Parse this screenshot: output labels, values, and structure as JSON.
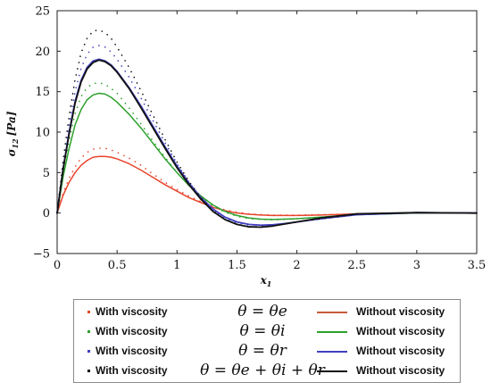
{
  "chart_data": {
    "type": "line",
    "title": "",
    "xlabel": "x",
    "xlabel_sub": "1",
    "ylabel": "σ",
    "ylabel_sub": "12",
    "ylabel_unit": "[Pa]",
    "xlim": [
      0,
      3.5
    ],
    "ylim": [
      -5,
      25
    ],
    "xticks": [
      "0",
      "0.5",
      "1",
      "1.5",
      "2",
      "2.5",
      "3",
      "3.5"
    ],
    "yticks": [
      "−5",
      "0",
      "5",
      "10",
      "15",
      "20",
      "25"
    ],
    "grid": false,
    "legend_position": "below",
    "series": [
      {
        "name": "Without viscosity",
        "theta": "θ = θe",
        "style": "solid",
        "color": "#e8452c",
        "x": [
          0,
          0.05,
          0.1,
          0.15,
          0.2,
          0.25,
          0.3,
          0.35,
          0.4,
          0.45,
          0.5,
          0.6,
          0.7,
          0.8,
          0.9,
          1.0,
          1.1,
          1.2,
          1.3,
          1.4,
          1.5,
          1.6,
          1.7,
          1.8,
          2.0,
          2.2,
          2.5,
          3.0,
          3.5
        ],
        "y": [
          0,
          2.2,
          3.8,
          5.0,
          5.9,
          6.5,
          6.9,
          7.0,
          7.0,
          6.9,
          6.7,
          6.1,
          5.3,
          4.4,
          3.5,
          2.7,
          1.9,
          1.3,
          0.7,
          0.3,
          0.0,
          -0.15,
          -0.25,
          -0.3,
          -0.3,
          -0.25,
          -0.1,
          0,
          0
        ]
      },
      {
        "name": "With viscosity",
        "theta": "θ = θe",
        "style": "dotted",
        "color": "#e8452c",
        "x": [
          0,
          0.05,
          0.1,
          0.15,
          0.2,
          0.25,
          0.3,
          0.35,
          0.4,
          0.45,
          0.5,
          0.6,
          0.7,
          0.8,
          0.9,
          1.0,
          1.1,
          1.2,
          1.3,
          1.4,
          1.5,
          1.6,
          1.8,
          2.0,
          2.5,
          3.0,
          3.5
        ],
        "y": [
          0,
          2.5,
          4.3,
          5.7,
          6.8,
          7.5,
          7.9,
          8.0,
          8.0,
          7.8,
          7.5,
          6.8,
          5.9,
          4.8,
          3.8,
          2.9,
          2.1,
          1.4,
          0.8,
          0.4,
          0.1,
          -0.1,
          -0.25,
          -0.25,
          -0.1,
          0,
          0
        ]
      },
      {
        "name": "Without viscosity",
        "theta": "θ = θi",
        "style": "solid",
        "color": "#2ca02c",
        "x": [
          0,
          0.05,
          0.1,
          0.15,
          0.2,
          0.25,
          0.3,
          0.35,
          0.4,
          0.45,
          0.5,
          0.6,
          0.7,
          0.8,
          0.9,
          1.0,
          1.1,
          1.2,
          1.3,
          1.4,
          1.5,
          1.6,
          1.7,
          1.8,
          2.0,
          2.2,
          2.5,
          3.0,
          3.5
        ],
        "y": [
          0,
          4.5,
          8.0,
          10.9,
          12.8,
          14.0,
          14.6,
          14.8,
          14.7,
          14.3,
          13.7,
          12.2,
          10.5,
          8.6,
          6.7,
          5.0,
          3.4,
          2.1,
          1.0,
          0.2,
          -0.3,
          -0.6,
          -0.75,
          -0.8,
          -0.7,
          -0.5,
          -0.2,
          0,
          0
        ]
      },
      {
        "name": "With viscosity",
        "theta": "θ = θi",
        "style": "dotted",
        "color": "#2ca02c",
        "x": [
          0,
          0.05,
          0.1,
          0.15,
          0.2,
          0.25,
          0.3,
          0.35,
          0.4,
          0.45,
          0.5,
          0.6,
          0.7,
          0.8,
          0.9,
          1.0,
          1.1,
          1.2,
          1.3,
          1.4,
          1.5,
          1.6,
          1.8,
          2.0,
          2.5,
          3.0,
          3.5
        ],
        "y": [
          0,
          5.0,
          9.0,
          12.3,
          14.4,
          15.5,
          16.0,
          16.1,
          15.9,
          15.4,
          14.8,
          13.0,
          11.0,
          8.9,
          6.9,
          5.0,
          3.4,
          2.0,
          0.9,
          0.1,
          -0.4,
          -0.7,
          -0.85,
          -0.7,
          -0.2,
          0,
          0
        ]
      },
      {
        "name": "Without viscosity",
        "theta": "θ = θr",
        "style": "solid",
        "color": "#4040c0",
        "x": [
          0,
          0.05,
          0.1,
          0.15,
          0.2,
          0.25,
          0.3,
          0.35,
          0.4,
          0.45,
          0.5,
          0.6,
          0.7,
          0.8,
          0.9,
          1.0,
          1.1,
          1.2,
          1.3,
          1.4,
          1.5,
          1.6,
          1.7,
          1.8,
          1.9,
          2.0,
          2.2,
          2.5,
          3.0,
          3.5
        ],
        "y": [
          0,
          5.5,
          10.0,
          13.8,
          16.4,
          18.0,
          18.8,
          19.0,
          18.8,
          18.3,
          17.5,
          15.5,
          13.2,
          10.7,
          8.2,
          5.8,
          3.7,
          1.9,
          0.5,
          -0.5,
          -1.1,
          -1.4,
          -1.5,
          -1.45,
          -1.3,
          -1.1,
          -0.7,
          -0.2,
          0.05,
          0
        ]
      },
      {
        "name": "With viscosity",
        "theta": "θ = θr",
        "style": "dotted",
        "color": "#4040c0",
        "x": [
          0,
          0.05,
          0.1,
          0.15,
          0.2,
          0.25,
          0.3,
          0.35,
          0.4,
          0.45,
          0.5,
          0.6,
          0.7,
          0.8,
          0.9,
          1.0,
          1.1,
          1.2,
          1.3,
          1.4,
          1.5,
          1.6,
          1.8,
          2.0,
          2.5,
          3.0,
          3.5
        ],
        "y": [
          0,
          6.0,
          11.0,
          15.0,
          17.9,
          19.6,
          20.5,
          20.7,
          20.5,
          19.9,
          19.0,
          16.8,
          14.2,
          11.4,
          8.7,
          6.1,
          3.8,
          1.9,
          0.4,
          -0.6,
          -1.2,
          -1.5,
          -1.5,
          -1.1,
          -0.2,
          0.05,
          0
        ]
      },
      {
        "name": "Without viscosity",
        "theta": "θ = θe + θi + θr",
        "style": "solid",
        "color": "#111111",
        "x": [
          0,
          0.05,
          0.1,
          0.15,
          0.2,
          0.25,
          0.3,
          0.35,
          0.4,
          0.45,
          0.5,
          0.6,
          0.7,
          0.8,
          0.9,
          1.0,
          1.1,
          1.2,
          1.3,
          1.4,
          1.5,
          1.6,
          1.7,
          1.8,
          1.9,
          2.0,
          2.2,
          2.5,
          3.0,
          3.5
        ],
        "y": [
          0,
          5.4,
          9.8,
          13.6,
          16.2,
          17.8,
          18.6,
          18.9,
          18.7,
          18.2,
          17.4,
          15.4,
          13.0,
          10.5,
          8.0,
          5.6,
          3.5,
          1.7,
          0.2,
          -0.8,
          -1.4,
          -1.7,
          -1.75,
          -1.6,
          -1.35,
          -1.1,
          -0.6,
          -0.1,
          0.05,
          0
        ]
      },
      {
        "name": "With viscosity",
        "theta": "θ = θe + θi + θr",
        "style": "dotted",
        "color": "#111111",
        "x": [
          0,
          0.05,
          0.1,
          0.15,
          0.2,
          0.25,
          0.3,
          0.35,
          0.4,
          0.45,
          0.5,
          0.6,
          0.7,
          0.8,
          0.9,
          1.0,
          1.1,
          1.2,
          1.3,
          1.4,
          1.5,
          1.6,
          1.8,
          2.0,
          2.5,
          3.0,
          3.5
        ],
        "y": [
          0,
          6.5,
          12.0,
          16.5,
          19.8,
          21.6,
          22.5,
          22.6,
          22.3,
          21.6,
          20.5,
          18.0,
          15.1,
          12.1,
          9.1,
          6.3,
          3.9,
          1.9,
          0.3,
          -0.8,
          -1.4,
          -1.7,
          -1.6,
          -1.1,
          -0.15,
          0.05,
          0
        ]
      }
    ]
  },
  "legend": {
    "rows": [
      {
        "left": "With viscosity",
        "theta": "θ = θe",
        "right": "Without viscosity",
        "color": "#e8452c"
      },
      {
        "left": "With viscosity",
        "theta": "θ = θi",
        "right": "Without viscosity",
        "color": "#2ca02c"
      },
      {
        "left": "With viscosity",
        "theta": "θ = θr",
        "right": "Without viscosity",
        "color": "#4040c0"
      },
      {
        "left": "With viscosity",
        "theta": "θ = θe + θi + θr",
        "right": "Without viscosity",
        "color": "#111111"
      }
    ]
  }
}
